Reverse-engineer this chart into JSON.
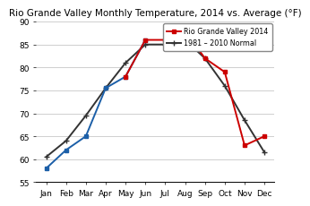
{
  "title": "Rio Grande Valley Monthly Temperature, 2014 vs. Average (°F)",
  "months": [
    "Jan",
    "Feb",
    "Mar",
    "Apr",
    "May",
    "Jun",
    "Jul",
    "Aug",
    "Sep",
    "Oct",
    "Nov",
    "Dec"
  ],
  "rgv_2014": [
    58,
    62,
    65,
    75.5,
    78,
    86,
    86,
    88,
    82,
    79,
    63,
    65
  ],
  "normal": [
    60.5,
    64,
    69.5,
    75.5,
    81,
    85,
    85,
    86,
    82,
    76,
    68.5,
    61.5
  ],
  "red_color": "#cc0000",
  "blue_color": "#1c5fa8",
  "black_color": "#333333",
  "ylim_min": 55,
  "ylim_max": 90,
  "yticks": [
    55,
    60,
    65,
    70,
    75,
    80,
    85,
    90
  ],
  "legend_rgv": "Rio Grande Valley 2014",
  "legend_normal": "1981 – 2010 Normal",
  "title_fontsize": 7.5,
  "legend_fontsize": 5.8,
  "tick_fontsize": 6.5,
  "linewidth": 1.4,
  "rgv_blue_indices": [
    0,
    1,
    2,
    3,
    4,
    5
  ],
  "rgv_red_indices": [
    4,
    5,
    6,
    7,
    8,
    9,
    10,
    11
  ]
}
